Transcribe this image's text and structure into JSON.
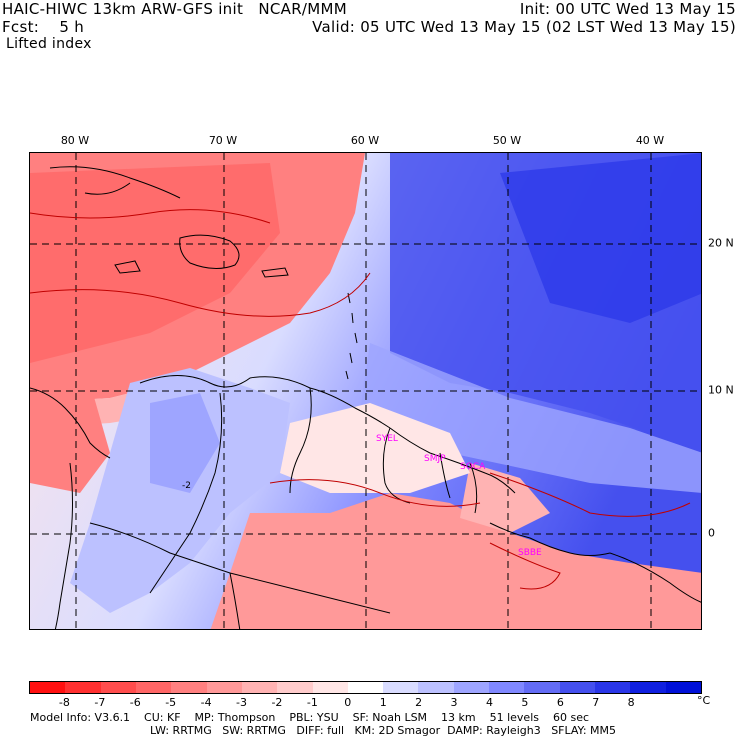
{
  "header": {
    "title": "HAIC-HIWC 13km ARW-GFS init   NCAR/MMM",
    "forecast": "Fcst:    5 h",
    "field": "Lifted index",
    "init": "Init: 00 UTC Wed 13 May 15",
    "valid": "Valid: 05 UTC Wed 13 May 15 (02 LST Wed 13 May 15)"
  },
  "axes": {
    "lon_labels": [
      "80 W",
      "70 W",
      "60 W",
      "50 W",
      "40 W"
    ],
    "lat_labels": [
      "20 N",
      "10 N",
      "0"
    ]
  },
  "contour_label": "-2",
  "stations": [
    "SYEL",
    "SMJP",
    "SOCA",
    "SBBE"
  ],
  "colorbar": {
    "labels": [
      "-8",
      "-7",
      "-6",
      "-5",
      "-4",
      "-3",
      "-2",
      "-1",
      "0",
      "1",
      "2",
      "3",
      "4",
      "5",
      "6",
      "7",
      "8"
    ],
    "unit": "°C",
    "colors": [
      "#ff1010",
      "#ff3030",
      "#ff4d4d",
      "#ff6666",
      "#ff8080",
      "#ff9999",
      "#ffb3b3",
      "#ffcccc",
      "#ffe6e6",
      "#ffffff",
      "#d9dcff",
      "#bcc1ff",
      "#9ea5ff",
      "#8088ff",
      "#636cf5",
      "#4550ee",
      "#2a36e8",
      "#1020e0",
      "#0010d8"
    ]
  },
  "footer": {
    "line1": "Model Info: V3.6.1    CU: KF    MP: Thompson    PBL: YSU    SF: Noah LSM    13 km    51 levels    60 sec",
    "line2": "LW: RRTMG   SW: RRTMG   DIFF: full   KM: 2D Smagor  DAMP: Rayleigh3   SFLAY: MM5"
  }
}
